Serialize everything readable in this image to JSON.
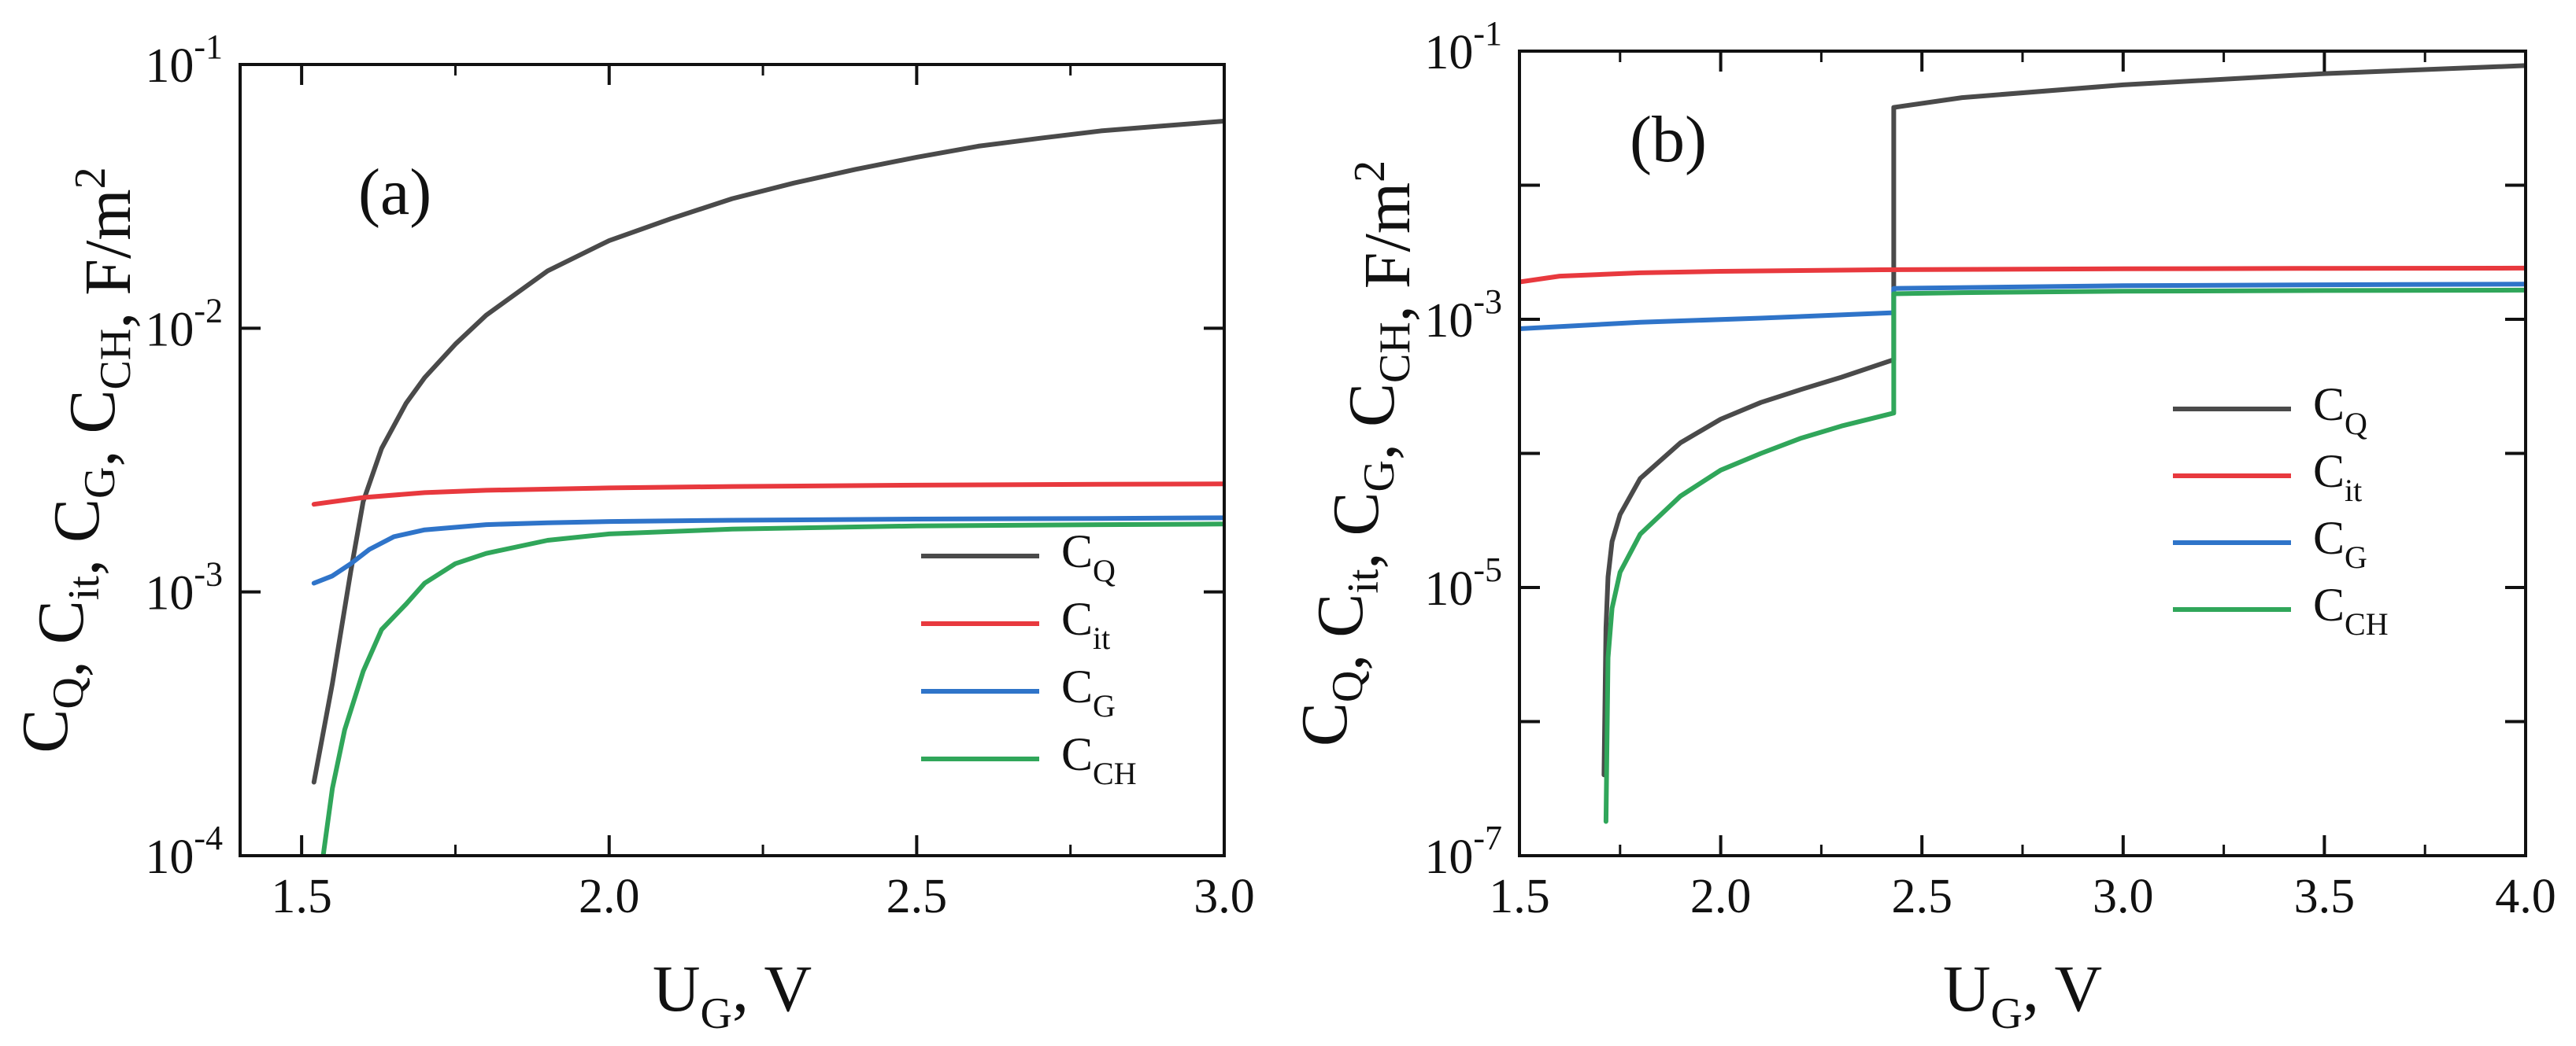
{
  "chart_data": [
    {
      "type": "line",
      "panel_label": "(a)",
      "xlabel": {
        "main": "U",
        "sub": "G",
        "rest": ", V"
      },
      "ylabel": "C_Q, C_it, C_G, C_CH, F/m^2",
      "ylabel_parts": [
        {
          "main": "C",
          "sub": "Q"
        },
        {
          "main": ", C",
          "sub": "it"
        },
        {
          "main": ", C",
          "sub": "G"
        },
        {
          "main": ", C",
          "sub": "CH"
        },
        {
          "main": ", F/m",
          "sup": "2"
        }
      ],
      "xscale": "linear",
      "yscale": "log",
      "xlim": [
        1.4,
        3.0
      ],
      "ylim": [
        0.0001,
        0.1
      ],
      "x_ticks": [
        1.5,
        2.0,
        2.5,
        3.0
      ],
      "x_tick_labels": [
        "1.5",
        "2.0",
        "2.5",
        "3.0"
      ],
      "y_tick_labels": [
        {
          "base": "10",
          "exp": "-4"
        },
        {
          "base": "10",
          "exp": "-3"
        },
        {
          "base": "10",
          "exp": "-2"
        },
        {
          "base": "10",
          "exp": "-1"
        }
      ],
      "legend_position": "bottom-right",
      "series": [
        {
          "name": "C_Q",
          "legend": {
            "main": "C",
            "sub": "Q"
          },
          "color": "#4a4a4a",
          "x": [
            1.52,
            1.55,
            1.58,
            1.6,
            1.63,
            1.67,
            1.7,
            1.75,
            1.8,
            1.9,
            2.0,
            2.1,
            2.2,
            2.3,
            2.4,
            2.5,
            2.6,
            2.7,
            2.8,
            2.9,
            3.0
          ],
          "y": [
            0.00019,
            0.00045,
            0.0012,
            0.0022,
            0.0035,
            0.0052,
            0.0065,
            0.0087,
            0.0112,
            0.0165,
            0.0215,
            0.026,
            0.031,
            0.0355,
            0.04,
            0.0445,
            0.049,
            0.0525,
            0.056,
            0.0585,
            0.061
          ]
        },
        {
          "name": "C_it",
          "legend": {
            "main": "C",
            "sub": "it"
          },
          "color": "#e8393e",
          "x": [
            1.52,
            1.6,
            1.7,
            1.8,
            2.0,
            2.2,
            2.5,
            2.8,
            3.0
          ],
          "y": [
            0.00215,
            0.00228,
            0.00238,
            0.00243,
            0.00248,
            0.00251,
            0.00254,
            0.00256,
            0.00257
          ]
        },
        {
          "name": "C_G",
          "legend": {
            "main": "C",
            "sub": "G"
          },
          "color": "#2f74c9",
          "x": [
            1.52,
            1.55,
            1.58,
            1.61,
            1.65,
            1.7,
            1.8,
            1.9,
            2.0,
            2.2,
            2.5,
            2.8,
            3.0
          ],
          "y": [
            0.00108,
            0.00115,
            0.00128,
            0.00145,
            0.00162,
            0.00172,
            0.0018,
            0.00183,
            0.00185,
            0.00187,
            0.00189,
            0.0019,
            0.00191
          ]
        },
        {
          "name": "C_CH",
          "legend": {
            "main": "C",
            "sub": "CH"
          },
          "color": "#30a65a",
          "x": [
            1.535,
            1.55,
            1.57,
            1.6,
            1.63,
            1.67,
            1.7,
            1.75,
            1.8,
            1.9,
            2.0,
            2.2,
            2.5,
            2.8,
            3.0
          ],
          "y": [
            0.0001,
            0.00018,
            0.0003,
            0.0005,
            0.00072,
            0.0009,
            0.00108,
            0.00128,
            0.0014,
            0.00157,
            0.00166,
            0.00173,
            0.00178,
            0.0018,
            0.00181
          ]
        }
      ]
    },
    {
      "type": "line",
      "panel_label": "(b)",
      "xlabel": {
        "main": "U",
        "sub": "G",
        "rest": ", V"
      },
      "ylabel": "C_Q, C_it, C_G, C_CH, F/m^2",
      "ylabel_parts": [
        {
          "main": "C",
          "sub": "Q"
        },
        {
          "main": ", C",
          "sub": "it"
        },
        {
          "main": ", C",
          "sub": "G"
        },
        {
          "main": ", C",
          "sub": "CH"
        },
        {
          "main": ", F/m",
          "sup": "2"
        }
      ],
      "xscale": "linear",
      "yscale": "log",
      "xlim": [
        1.5,
        4.0
      ],
      "ylim": [
        1e-07,
        0.1
      ],
      "x_ticks": [
        1.5,
        2.0,
        2.5,
        3.0,
        3.5,
        4.0
      ],
      "x_tick_labels": [
        "1.5",
        "2.0",
        "2.5",
        "3.0",
        "3.5",
        "4.0"
      ],
      "y_tick_labels": [
        {
          "base": "10",
          "exp": "-7"
        },
        {
          "base": "10",
          "exp": "-5"
        },
        {
          "base": "10",
          "exp": "-3"
        },
        {
          "base": "10",
          "exp": "-1"
        }
      ],
      "legend_position": "center-right",
      "series": [
        {
          "name": "C_Q",
          "legend": {
            "main": "C",
            "sub": "Q"
          },
          "color": "#4a4a4a",
          "x": [
            1.71,
            1.715,
            1.72,
            1.73,
            1.75,
            1.8,
            1.9,
            2.0,
            2.1,
            2.2,
            2.3,
            2.43,
            2.43,
            2.6,
            3.0,
            3.5,
            4.0
          ],
          "y": [
            4e-07,
            5e-06,
            1.2e-05,
            2.2e-05,
            3.5e-05,
            6.5e-05,
            0.00012,
            0.00018,
            0.00024,
            0.0003,
            0.00037,
            0.0005,
            0.038,
            0.045,
            0.056,
            0.068,
            0.078
          ]
        },
        {
          "name": "C_it",
          "legend": {
            "main": "C",
            "sub": "it"
          },
          "color": "#e8393e",
          "x": [
            1.5,
            1.6,
            1.8,
            2.0,
            2.4,
            3.0,
            3.5,
            4.0
          ],
          "y": [
            0.0019,
            0.0021,
            0.00222,
            0.00228,
            0.00234,
            0.00238,
            0.0024,
            0.00241
          ]
        },
        {
          "name": "C_G",
          "legend": {
            "main": "C",
            "sub": "G"
          },
          "color": "#2f74c9",
          "x": [
            1.5,
            1.8,
            2.1,
            2.43,
            2.43,
            3.0,
            3.5,
            4.0
          ],
          "y": [
            0.00085,
            0.00095,
            0.00102,
            0.00112,
            0.0017,
            0.00178,
            0.00181,
            0.00183
          ]
        },
        {
          "name": "C_CH",
          "legend": {
            "main": "C",
            "sub": "CH"
          },
          "color": "#30a65a",
          "x": [
            1.715,
            1.72,
            1.73,
            1.75,
            1.8,
            1.9,
            2.0,
            2.1,
            2.2,
            2.3,
            2.43,
            2.43,
            2.6,
            3.0,
            3.5,
            4.0
          ],
          "y": [
            1.8e-07,
            3e-06,
            7e-06,
            1.3e-05,
            2.5e-05,
            4.8e-05,
            7.5e-05,
            0.0001,
            0.00013,
            0.00016,
            0.0002,
            0.00155,
            0.00158,
            0.00162,
            0.00164,
            0.00165
          ]
        }
      ]
    }
  ]
}
